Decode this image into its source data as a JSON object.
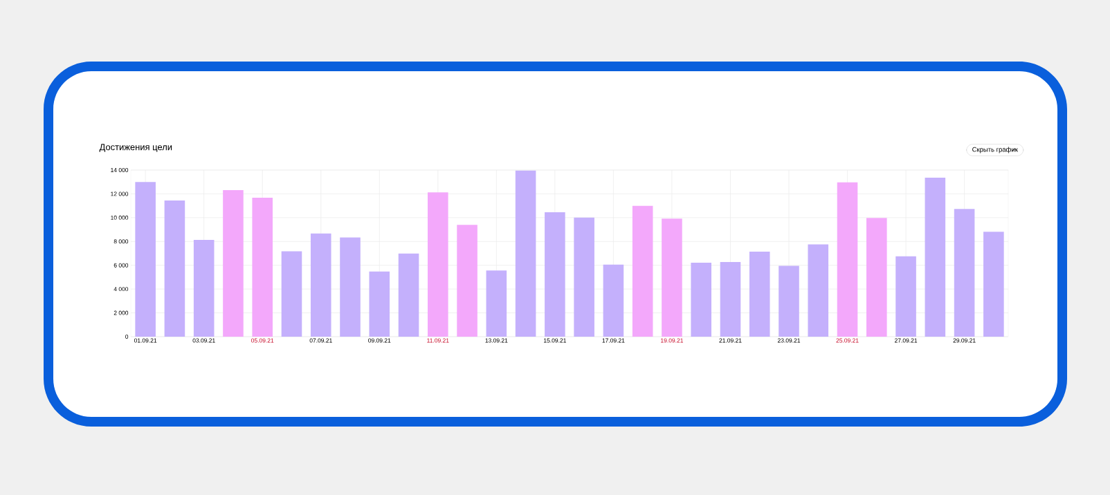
{
  "chart_data": {
    "type": "bar",
    "title": "Достижения цели",
    "annotations": [
      "Скрыть график"
    ],
    "categories": [
      "01.09.21",
      null,
      "03.09.21",
      null,
      "05.09.21",
      null,
      "07.09.21",
      null,
      "09.09.21",
      null,
      "11.09.21",
      null,
      "13.09.21",
      null,
      "15.09.21",
      null,
      "17.09.21",
      null,
      "19.09.21",
      null,
      "21.09.21",
      null,
      "23.09.21",
      null,
      "25.09.21",
      null,
      "27.09.21",
      null,
      "29.09.21",
      null
    ],
    "values": [
      13000,
      11450,
      8130,
      12310,
      11670,
      7170,
      8670,
      8340,
      5480,
      6980,
      12130,
      9390,
      5560,
      13960,
      10460,
      10010,
      6050,
      11000,
      9920,
      6220,
      6280,
      7140,
      5950,
      7760,
      12970,
      9970,
      6750,
      13360,
      10730,
      8810
    ],
    "color": "#c4b0fc",
    "colors": [
      "#c4b0fc",
      "#c4b0fc",
      "#c4b0fc",
      "#f3a8fb",
      "#f3a8fb",
      "#c4b0fc",
      "#c4b0fc",
      "#c4b0fc",
      "#c4b0fc",
      "#c4b0fc",
      "#f3a8fb",
      "#f3a8fb",
      "#c4b0fc",
      "#c4b0fc",
      "#c4b0fc",
      "#c4b0fc",
      "#c4b0fc",
      "#f3a8fb",
      "#f3a8fb",
      "#c4b0fc",
      "#c4b0fc",
      "#c4b0fc",
      "#c4b0fc",
      "#c4b0fc",
      "#f3a8fb",
      "#f3a8fb",
      "#c4b0fc",
      "#c4b0fc",
      "#c4b0fc",
      "#c4b0fc"
    ],
    "ylim": [
      0,
      14000
    ],
    "yticks": [
      0,
      {
        "value": 2000,
        "label": "2 000"
      },
      {
        "value": 4000,
        "label": "4 000"
      },
      {
        "value": 6000,
        "label": "6 000"
      },
      {
        "value": 8000,
        "label": "8 000"
      },
      {
        "value": 10000,
        "label": "10 000"
      },
      {
        "value": 12000,
        "label": "12 000"
      },
      {
        "value": 14000,
        "label": "14 000"
      }
    ],
    "grid": true
  }
}
